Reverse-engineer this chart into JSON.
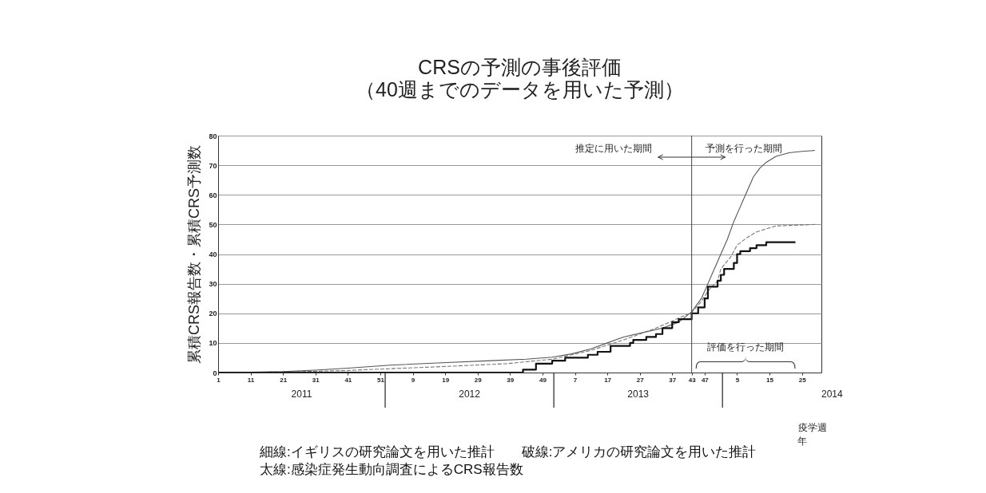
{
  "chart_data": {
    "type": "line",
    "title": "CRSの予測の事後評価",
    "subtitle": "（40週までのデータを用いた予測）",
    "xlabel": "疫学週",
    "ylabel": "累積CRS報告数・累積CRS予測数",
    "xlim": [
      "2011-01-03",
      "2014-07-28"
    ],
    "ylim": [
      0,
      80
    ],
    "xticks": [
      {
        "value": "2011-01-03",
        "label": "1"
      },
      {
        "value": "2011-03-14",
        "label": "11"
      },
      {
        "value": "2011-05-23",
        "label": "21"
      },
      {
        "value": "2011-08-01",
        "label": "31"
      },
      {
        "value": "2011-10-10",
        "label": "41"
      },
      {
        "value": "2011-12-19",
        "label": "51"
      },
      {
        "value": "2012-02-27",
        "label": "9"
      },
      {
        "value": "2012-05-07",
        "label": "19"
      },
      {
        "value": "2012-07-16",
        "label": "29"
      },
      {
        "value": "2012-09-24",
        "label": "39"
      },
      {
        "value": "2012-12-03",
        "label": "49"
      },
      {
        "value": "2013-02-11",
        "label": "7"
      },
      {
        "value": "2013-04-22",
        "label": "17"
      },
      {
        "value": "2013-07-01",
        "label": "27"
      },
      {
        "value": "2013-09-09",
        "label": "37"
      },
      {
        "value": "2013-10-21",
        "label": "43"
      },
      {
        "value": "2013-11-18",
        "label": "47"
      },
      {
        "value": "2014-01-27",
        "label": "5"
      },
      {
        "value": "2014-04-07",
        "label": "15"
      },
      {
        "value": "2014-06-16",
        "label": "25"
      }
    ],
    "yticks": [
      0,
      10,
      20,
      30,
      40,
      50,
      60,
      70,
      80
    ],
    "grid": "y",
    "series": [
      {
        "type": "line",
        "color": "#555555",
        "line_style": "solid",
        "x": [
          "2011-01-03",
          "2011-03-14",
          "2011-05-23",
          "2011-08-01",
          "2011-10-10",
          "2012-01-09",
          "2012-04-30",
          "2012-08-13",
          "2012-10-29",
          "2012-12-24",
          "2013-02-04",
          "2013-03-18",
          "2013-04-22",
          "2013-05-27",
          "2013-07-08",
          "2013-08-19",
          "2013-09-23",
          "2013-10-21",
          "2013-11-11",
          "2013-11-25",
          "2013-12-09",
          "2013-12-23",
          "2014-01-06",
          "2014-01-20",
          "2014-02-03",
          "2014-02-17",
          "2014-03-03",
          "2014-03-17",
          "2014-03-31",
          "2014-04-21",
          "2014-05-19",
          "2014-06-16",
          "2014-07-14"
        ],
        "values": [
          0,
          0.1,
          0.3,
          0.8,
          1.5,
          2.5,
          3.3,
          4,
          4.5,
          5.2,
          6.3,
          8,
          10,
          12,
          13.5,
          15,
          17,
          20.5,
          25,
          30,
          35,
          40,
          45,
          51,
          56,
          61,
          66,
          69,
          71,
          73,
          74.2,
          74.7,
          75
        ]
      },
      {
        "type": "line",
        "color": "#777777",
        "line_style": "dashed",
        "x": [
          "2011-01-03",
          "2011-05-23",
          "2011-10-10",
          "2012-01-09",
          "2012-04-30",
          "2012-09-17",
          "2012-12-24",
          "2013-03-18",
          "2013-05-27",
          "2013-08-05",
          "2013-10-21",
          "2013-11-11",
          "2013-11-25",
          "2013-12-16",
          "2013-12-23",
          "2014-01-13",
          "2014-01-27",
          "2014-02-17",
          "2014-03-10",
          "2014-04-21",
          "2014-07-14"
        ],
        "values": [
          0,
          0.2,
          0.7,
          1.3,
          2,
          3,
          4.5,
          7.5,
          11,
          15,
          20.3,
          24,
          27.5,
          31,
          35,
          39,
          43,
          45.5,
          47.5,
          49.5,
          50
        ]
      },
      {
        "type": "step",
        "color": "#111111",
        "line_style": "solid",
        "x": [
          "2011-01-03",
          "2012-10-22",
          "2012-11-19",
          "2012-12-24",
          "2013-01-21",
          "2013-03-11",
          "2013-04-01",
          "2013-04-29",
          "2013-06-10",
          "2013-06-17",
          "2013-07-15",
          "2013-08-05",
          "2013-08-19",
          "2013-09-09",
          "2013-09-23",
          "2013-10-21",
          "2013-11-04",
          "2013-11-18",
          "2013-11-25",
          "2013-12-16",
          "2013-12-23",
          "2013-12-30",
          "2014-01-20",
          "2014-01-27",
          "2014-02-03",
          "2014-02-24",
          "2014-03-10",
          "2014-03-31",
          "2014-06-02"
        ],
        "values": [
          0,
          1,
          3,
          4,
          5,
          6,
          7,
          9,
          10,
          11,
          12,
          13,
          15,
          17,
          18,
          20,
          22,
          25,
          29,
          31,
          33,
          35,
          37,
          40,
          41,
          42,
          43,
          44,
          44
        ]
      }
    ],
    "ref_lines": [
      {
        "axis": "x",
        "value": "2013-10-21",
        "color": "#444444"
      }
    ],
    "annotations": [
      "推定に用いた期間",
      "予測を行った期間",
      "評価を行った期間",
      "2011",
      "2012",
      "2013",
      "2014",
      "年",
      "細線:イギリスの研究論文を用いた推計　　破線:アメリカの研究論文を用いた推計",
      "太線:感染症発生動向調査によるCRS報告数"
    ]
  }
}
